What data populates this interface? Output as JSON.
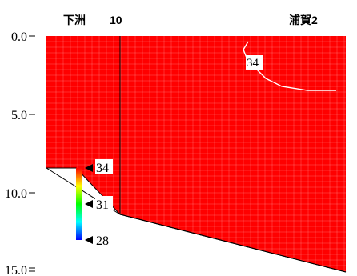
{
  "chart_data": {
    "type": "heatmap",
    "title": "",
    "station_labels": [
      "下洲",
      "10",
      "浦賀2"
    ],
    "y_axis": {
      "ticks": [
        "0.0",
        "5.0",
        "10.0",
        "15.0"
      ],
      "tick_values": [
        0,
        5,
        10,
        15
      ],
      "range": [
        0,
        15
      ],
      "inverted": true
    },
    "contours": [
      {
        "label": "34",
        "value": 34
      }
    ],
    "colorbar": {
      "labels": [
        "34",
        "31",
        "28"
      ],
      "values": [
        34,
        31,
        28
      ],
      "range": [
        28,
        34
      ],
      "colors": [
        "#ff0000",
        "#ffff00",
        "#00ff00",
        "#00ffff",
        "#0000ff"
      ]
    },
    "fill_color": "#ff0000",
    "grid": true
  }
}
